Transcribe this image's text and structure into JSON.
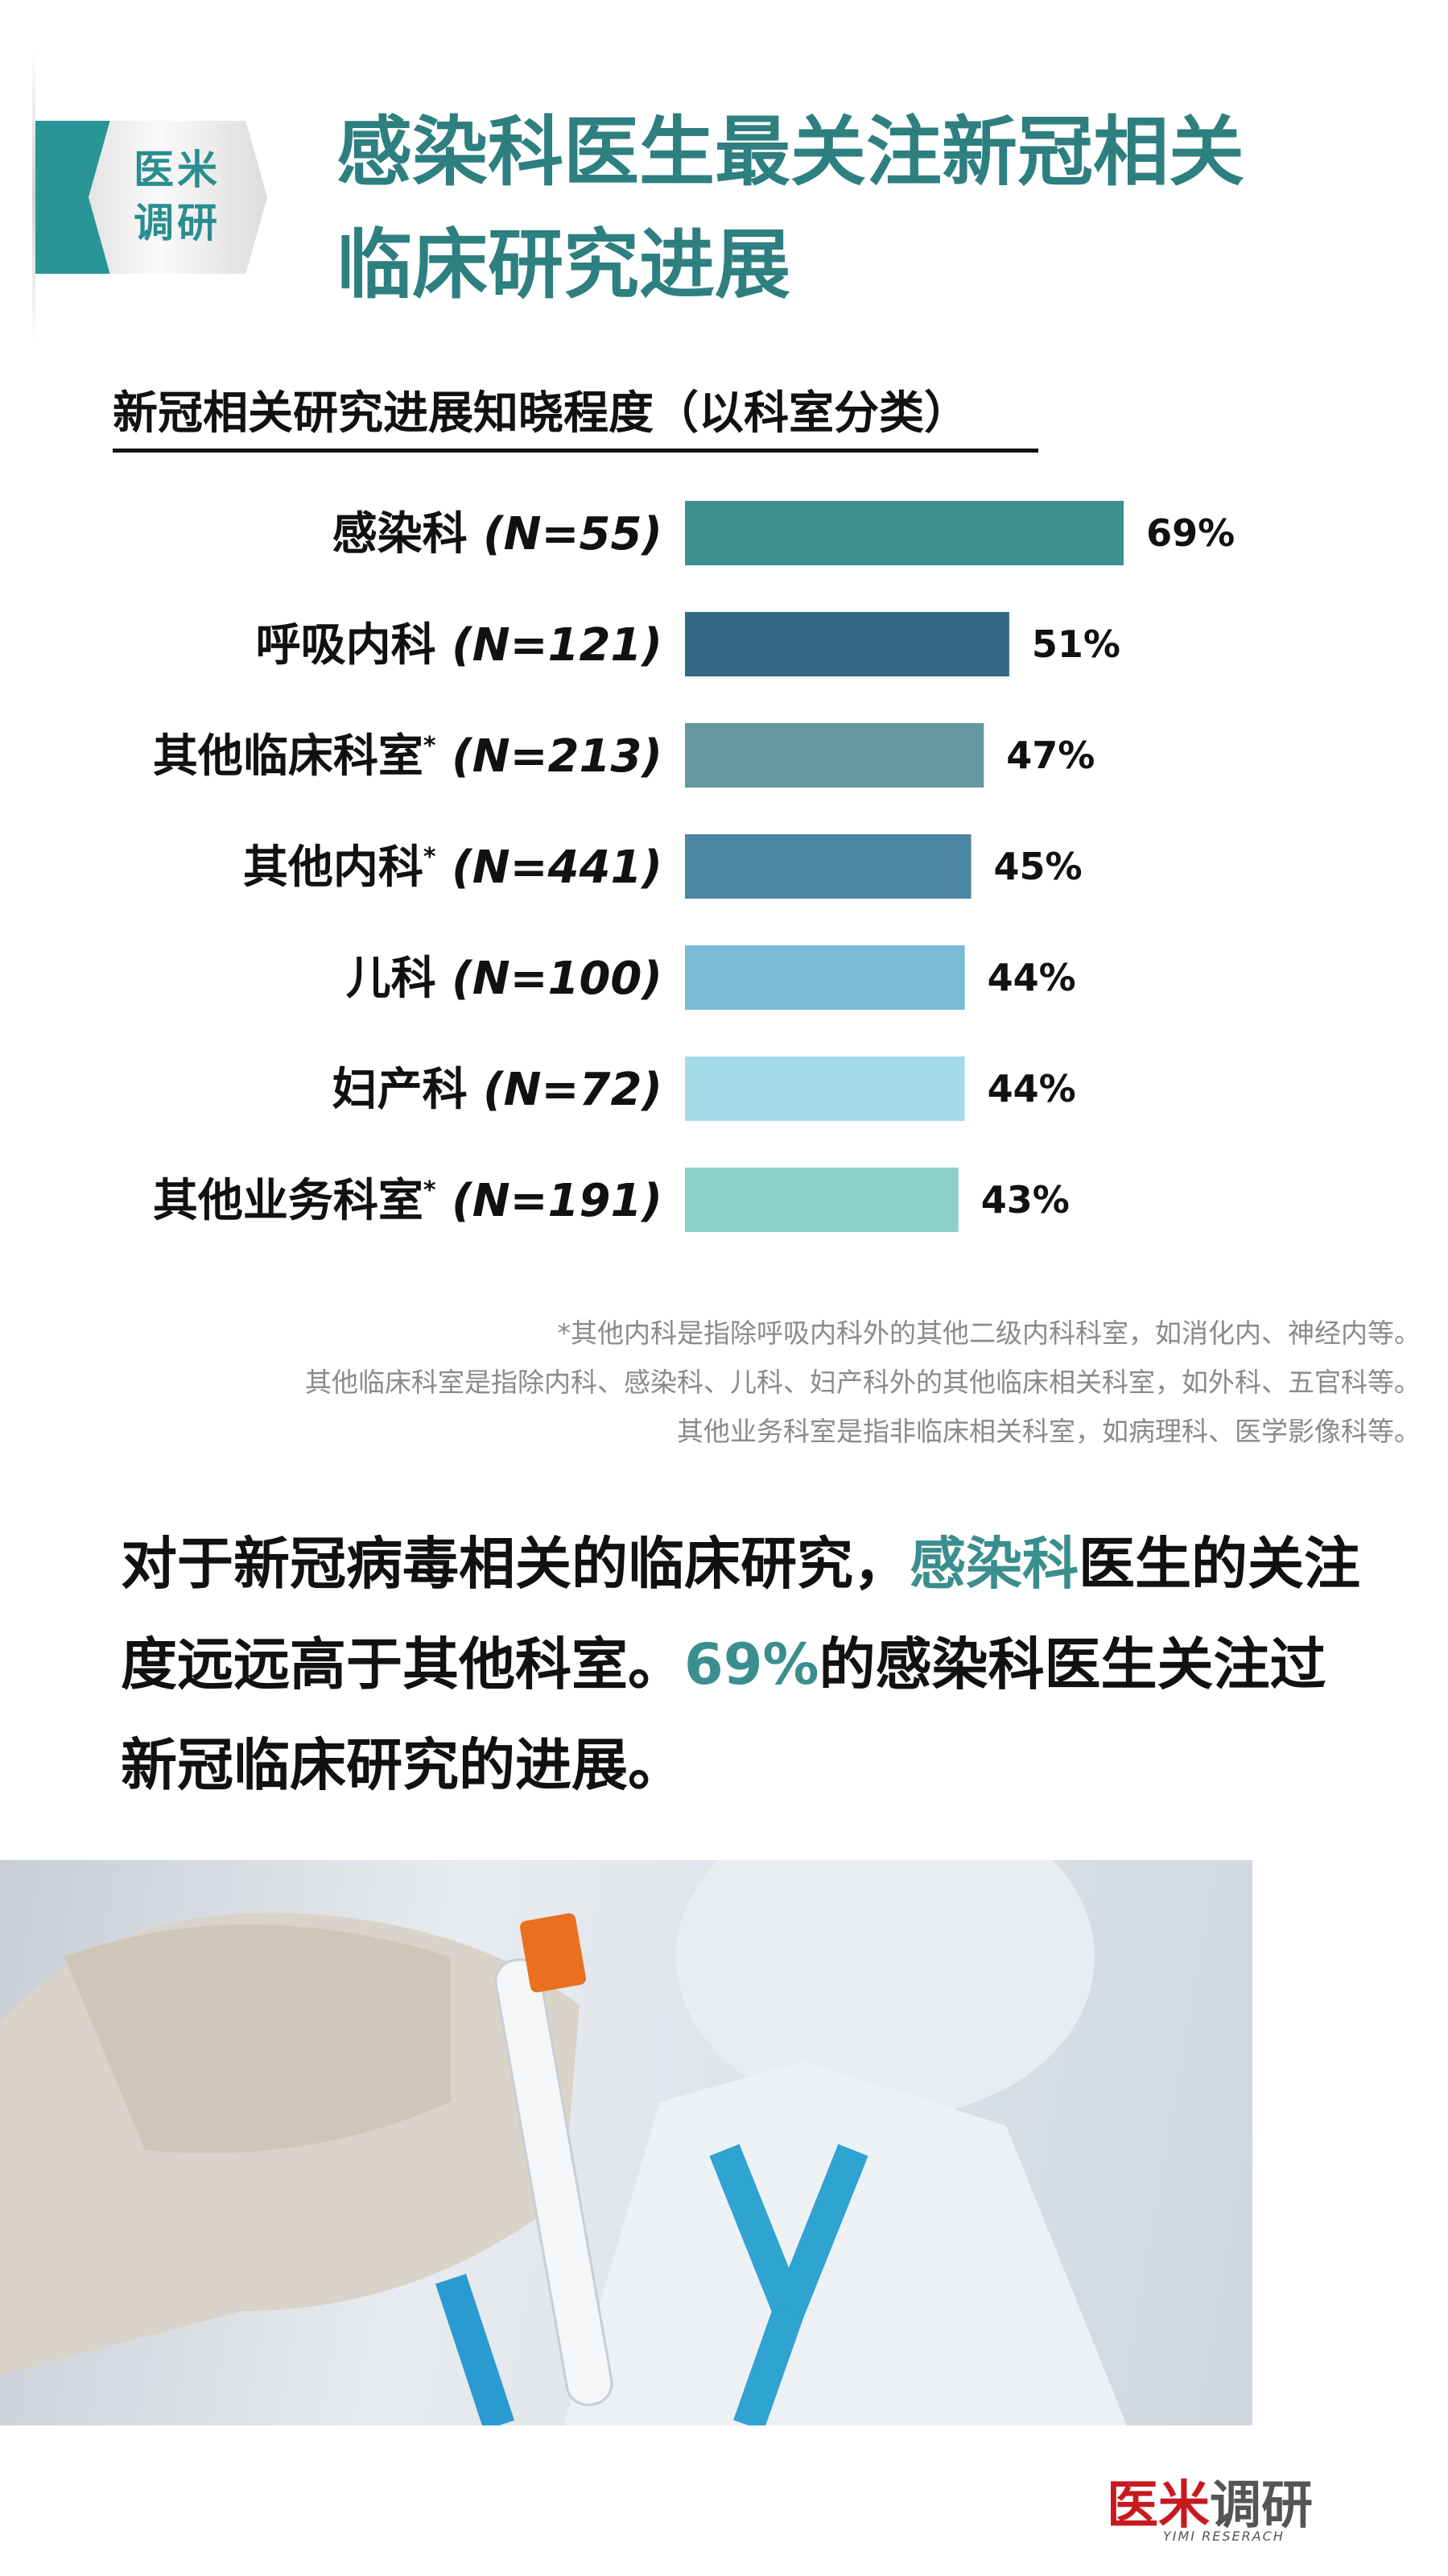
{
  "badge": {
    "line1": "医米",
    "line2": "调研"
  },
  "header": {
    "title_line1": "感染科医生最关注新冠相关",
    "title_line2": "临床研究进展"
  },
  "colors": {
    "title": "#2e7f80",
    "accent": "#3a8f8e",
    "brand_red": "#c8191f"
  },
  "chart_data": {
    "type": "bar",
    "orientation": "horizontal",
    "title": "新冠相关研究进展知晓程度（以科室分类）",
    "categories": [
      {
        "name": "感染科",
        "asterisk": "",
        "n": "(N=55)"
      },
      {
        "name": "呼吸内科",
        "asterisk": "",
        "n": "(N=121)"
      },
      {
        "name": "其他临床科室",
        "asterisk": "*",
        "n": "(N=213)"
      },
      {
        "name": "其他内科",
        "asterisk": "*",
        "n": "(N=441)"
      },
      {
        "name": "儿科",
        "asterisk": "",
        "n": "(N=100)"
      },
      {
        "name": "妇产科",
        "asterisk": "",
        "n": "(N=72)"
      },
      {
        "name": "其他业务科室",
        "asterisk": "*",
        "n": "(N=191)"
      }
    ],
    "values": [
      69,
      51,
      47,
      45,
      44,
      44,
      43
    ],
    "value_labels": [
      "69%",
      "51%",
      "47%",
      "45%",
      "44%",
      "44%",
      "43%"
    ],
    "bar_colors": [
      "#3d9090",
      "#336a86",
      "#6398a3",
      "#4d86a3",
      "#79bad5",
      "#a4dbea",
      "#8ccfcb"
    ],
    "unit": "%",
    "grid": false,
    "legend": "none"
  },
  "footnotes": [
    "*其他内科是指除呼吸内科外的其他二级内科科室，如消化内、神经内等。",
    "其他临床科室是指除内科、感染科、儿科、妇产科外的其他临床相关科室，如外科、五官科等。",
    "其他业务科室是指非临床相关科室，如病理科、医学影像科等。"
  ],
  "paragraph": {
    "p1": "对于新冠病毒相关的临床研究，",
    "h1": "感染科",
    "p2": "医生的关注度远远高于其他科室。",
    "h2": "69%",
    "p3": "的感染科医生关注过新冠临床研究的进展。"
  },
  "logo": {
    "red": "医米",
    "gray": "调研",
    "sub": "YIMI RESERACH"
  }
}
